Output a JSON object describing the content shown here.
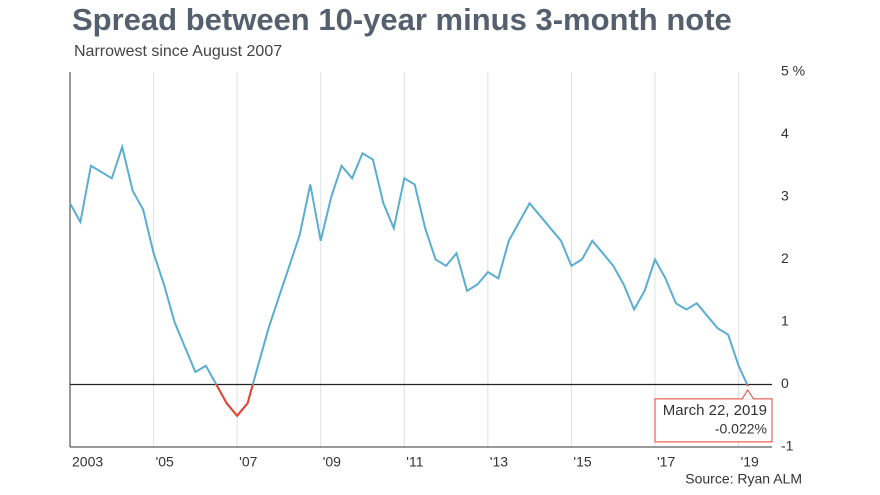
{
  "chart_data": {
    "type": "line",
    "title": "Spread between 10-year minus 3-month note",
    "subtitle": "Narrowest since August 2007",
    "source": "Source: Ryan ALM",
    "x": [
      2003.0,
      2003.25,
      2003.5,
      2003.75,
      2004.0,
      2004.25,
      2004.5,
      2004.75,
      2005.0,
      2005.25,
      2005.5,
      2005.75,
      2006.0,
      2006.25,
      2006.5,
      2006.75,
      2007.0,
      2007.25,
      2007.5,
      2007.75,
      2008.0,
      2008.25,
      2008.5,
      2008.75,
      2009.0,
      2009.25,
      2009.5,
      2009.75,
      2010.0,
      2010.25,
      2010.5,
      2010.75,
      2011.0,
      2011.25,
      2011.5,
      2011.75,
      2012.0,
      2012.25,
      2012.5,
      2012.75,
      2013.0,
      2013.25,
      2013.5,
      2013.75,
      2014.0,
      2014.25,
      2014.5,
      2014.75,
      2015.0,
      2015.25,
      2015.5,
      2015.75,
      2016.0,
      2016.25,
      2016.5,
      2016.75,
      2017.0,
      2017.25,
      2017.5,
      2017.75,
      2018.0,
      2018.25,
      2018.5,
      2018.75,
      2019.0,
      2019.22
    ],
    "values": [
      2.9,
      2.6,
      3.5,
      3.4,
      3.3,
      3.8,
      3.1,
      2.8,
      2.1,
      1.6,
      1.0,
      0.6,
      0.2,
      0.3,
      0.0,
      -0.3,
      -0.5,
      -0.3,
      0.3,
      0.9,
      1.4,
      1.9,
      2.4,
      3.2,
      2.3,
      3.0,
      3.5,
      3.3,
      3.7,
      3.6,
      2.9,
      2.5,
      3.3,
      3.2,
      2.5,
      2.0,
      1.9,
      2.1,
      1.5,
      1.6,
      1.8,
      1.7,
      2.3,
      2.6,
      2.9,
      2.7,
      2.5,
      2.3,
      1.9,
      2.0,
      2.3,
      2.1,
      1.9,
      1.6,
      1.2,
      1.5,
      2.0,
      1.7,
      1.3,
      1.2,
      1.3,
      1.1,
      0.9,
      0.8,
      0.3,
      -0.022
    ],
    "color": "#5aaecf",
    "negative_color": "#e8412c",
    "xlim": [
      2003,
      2019.8
    ],
    "xticks": [
      {
        "value": 2003,
        "label": "2003"
      },
      {
        "value": 2005,
        "label": "'05"
      },
      {
        "value": 2007,
        "label": "'07"
      },
      {
        "value": 2009,
        "label": "'09"
      },
      {
        "value": 2011,
        "label": "'11"
      },
      {
        "value": 2013,
        "label": "'13"
      },
      {
        "value": 2015,
        "label": "'15"
      },
      {
        "value": 2017,
        "label": "'17"
      },
      {
        "value": 2019,
        "label": "'19"
      }
    ],
    "ylim": [
      -1,
      5
    ],
    "yticks": [
      -1,
      0,
      1,
      2,
      3,
      4,
      {
        "value": 5,
        "label": "5 %"
      }
    ],
    "grid": true,
    "annotation": {
      "text": "March 22, 2019",
      "value": -0.022,
      "value_label": "-0.022%"
    }
  }
}
